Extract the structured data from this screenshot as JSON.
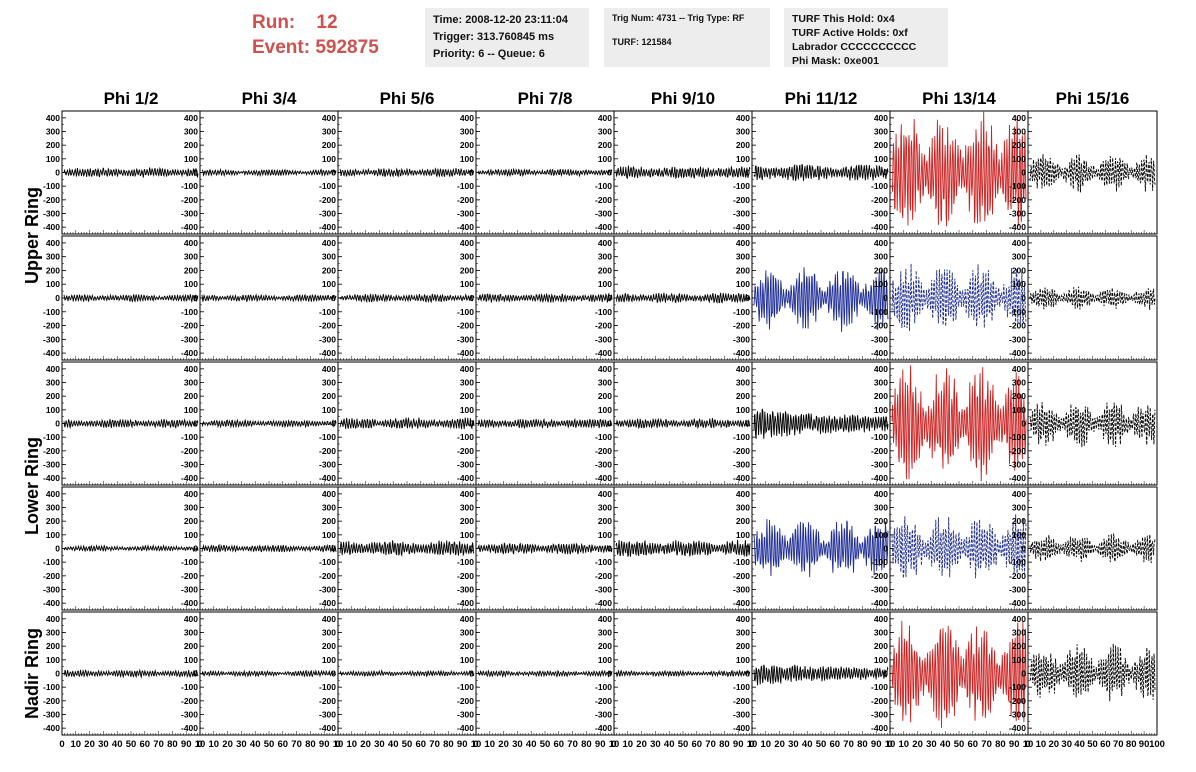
{
  "header": {
    "run_label": "Run:",
    "run_value": "12",
    "event_label": "Event:",
    "event_value": "592875",
    "time": "Time: 2008-12-20 23:11:04",
    "trigger": "Trigger: 313.760845 ms",
    "priority": "Priority: 6 -- Queue: 6",
    "trig_num": "Trig Num: 4731 -- Trig Type: RF",
    "turf": "TURF: 121584",
    "turf_hold": "TURF This Hold: 0x4",
    "turf_active": "TURF Active Holds: 0xf",
    "labrador": "Labrador CCCCCCCCCC",
    "phi_mask": "Phi Mask: 0xe001"
  },
  "colors": {
    "header_red": "#d0504d",
    "trace_black": "#000000",
    "trace_red": "#cc2222",
    "trace_blue": "#1f2d96",
    "panel_bg": "#ededed"
  },
  "chart_data": {
    "type": "line",
    "columns": [
      "Phi 1/2",
      "Phi 3/4",
      "Phi 5/6",
      "Phi 7/8",
      "Phi 9/10",
      "Phi 11/12",
      "Phi 13/14",
      "Phi 15/16"
    ],
    "ring_labels": [
      {
        "name": "Upper Ring",
        "rows": [
          0,
          1
        ]
      },
      {
        "name": "Lower Ring",
        "rows": [
          2,
          3
        ]
      },
      {
        "name": "Nadir Ring",
        "rows": [
          4
        ]
      }
    ],
    "y_range": [
      -450,
      450
    ],
    "y_ticks": [
      400,
      300,
      200,
      100,
      0,
      -100,
      -200,
      -300,
      -400
    ],
    "x_range": [
      0,
      100
    ],
    "x_ticks": [
      0,
      10,
      20,
      30,
      40,
      50,
      60,
      70,
      80,
      90,
      100
    ],
    "x_tick_labels_row": "0 10 20 30 40 50 60 70 80 90 10",
    "x_tick_labels_last": "0 10 20 30 40 50 60 70 80 90 100",
    "panels": [
      [
        {
          "amp": 35,
          "color": "black",
          "style": "solid"
        },
        {
          "amp": 22,
          "color": "black",
          "style": "solid"
        },
        {
          "amp": 30,
          "color": "black",
          "style": "solid"
        },
        {
          "amp": 25,
          "color": "black",
          "style": "solid"
        },
        {
          "amp": 45,
          "color": "black",
          "style": "solid"
        },
        {
          "amp": 60,
          "color": "black",
          "style": "solid"
        },
        {
          "amp": 430,
          "color": "red",
          "style": "solid",
          "env": "beat"
        },
        {
          "amp": 130,
          "color": "black",
          "style": "dashed",
          "env": "beat"
        }
      ],
      [
        {
          "amp": 25,
          "color": "black",
          "style": "solid"
        },
        {
          "amp": 25,
          "color": "black",
          "style": "solid"
        },
        {
          "amp": 28,
          "color": "black",
          "style": "solid"
        },
        {
          "amp": 30,
          "color": "black",
          "style": "solid"
        },
        {
          "amp": 35,
          "color": "black",
          "style": "solid"
        },
        {
          "amp": 220,
          "color": "blue",
          "style": "solid",
          "env": "beat"
        },
        {
          "amp": 230,
          "color": "blue",
          "style": "dashed",
          "env": "beat"
        },
        {
          "amp": 80,
          "color": "black",
          "style": "dashed",
          "env": "beat"
        }
      ],
      [
        {
          "amp": 30,
          "color": "black",
          "style": "solid"
        },
        {
          "amp": 25,
          "color": "black",
          "style": "solid"
        },
        {
          "amp": 40,
          "color": "black",
          "style": "solid"
        },
        {
          "amp": 35,
          "color": "black",
          "style": "solid"
        },
        {
          "amp": 35,
          "color": "black",
          "style": "solid"
        },
        {
          "amp": 110,
          "color": "black",
          "style": "solid",
          "env": "decay"
        },
        {
          "amp": 400,
          "color": "red",
          "style": "solid",
          "env": "beat"
        },
        {
          "amp": 160,
          "color": "black",
          "style": "dashed",
          "env": "beat"
        }
      ],
      [
        {
          "amp": 20,
          "color": "black",
          "style": "solid"
        },
        {
          "amp": 25,
          "color": "black",
          "style": "solid"
        },
        {
          "amp": 55,
          "color": "black",
          "style": "solid"
        },
        {
          "amp": 40,
          "color": "black",
          "style": "solid"
        },
        {
          "amp": 60,
          "color": "black",
          "style": "solid"
        },
        {
          "amp": 220,
          "color": "blue",
          "style": "solid",
          "env": "beat"
        },
        {
          "amp": 230,
          "color": "blue",
          "style": "dashed",
          "env": "beat"
        },
        {
          "amp": 100,
          "color": "black",
          "style": "dashed",
          "env": "beat"
        }
      ],
      [
        {
          "amp": 25,
          "color": "black",
          "style": "solid"
        },
        {
          "amp": 20,
          "color": "black",
          "style": "solid"
        },
        {
          "amp": 20,
          "color": "black",
          "style": "solid"
        },
        {
          "amp": 20,
          "color": "black",
          "style": "solid"
        },
        {
          "amp": 20,
          "color": "black",
          "style": "solid"
        },
        {
          "amp": 80,
          "color": "black",
          "style": "solid",
          "env": "decay"
        },
        {
          "amp": 380,
          "color": "red",
          "style": "solid",
          "env": "beat"
        },
        {
          "amp": 200,
          "color": "black",
          "style": "dashed",
          "env": "beat"
        }
      ]
    ]
  }
}
